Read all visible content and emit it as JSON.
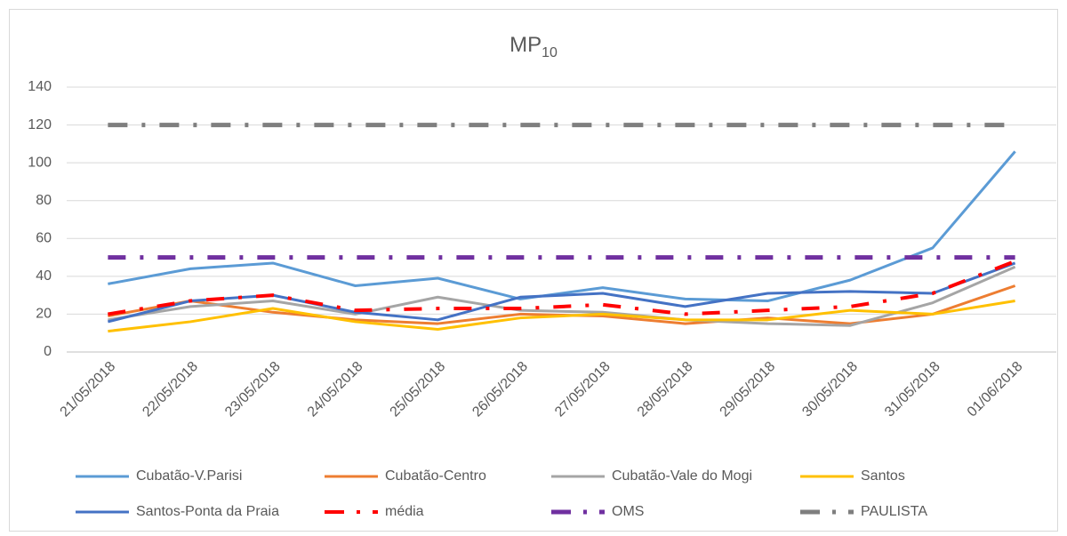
{
  "chart_data": {
    "type": "line",
    "title": "MP",
    "title_subscript": "10",
    "categories": [
      "21/05/2018",
      "22/05/2018",
      "23/05/2018",
      "24/05/2018",
      "25/05/2018",
      "26/05/2018",
      "27/05/2018",
      "28/05/2018",
      "29/05/2018",
      "30/05/2018",
      "31/05/2018",
      "01/06/2018"
    ],
    "series": [
      {
        "name": "Cubatão-V.Parisi",
        "color": "#5b9bd5",
        "line_style": "solid",
        "values": [
          36,
          44,
          47,
          35,
          39,
          28,
          34,
          28,
          27,
          38,
          55,
          106
        ]
      },
      {
        "name": "Cubatão-Centro",
        "color": "#ed7d31",
        "line_style": "solid",
        "values": [
          19,
          27,
          21,
          17,
          15,
          20,
          19,
          15,
          18,
          15,
          20,
          35
        ]
      },
      {
        "name": "Cubatão-Vale do Mogi",
        "color": "#a5a5a5",
        "line_style": "solid",
        "values": [
          17,
          24,
          27,
          20,
          29,
          22,
          21,
          17,
          15,
          14,
          26,
          45
        ]
      },
      {
        "name": "Santos",
        "color": "#ffc000",
        "line_style": "solid",
        "values": [
          11,
          16,
          23,
          16,
          12,
          18,
          20,
          17,
          17,
          22,
          20,
          27
        ]
      },
      {
        "name": "Santos-Ponta da Praia",
        "color": "#4472c4",
        "line_style": "solid",
        "values": [
          16,
          27,
          30,
          21,
          17,
          29,
          31,
          24,
          31,
          32,
          31,
          47
        ]
      },
      {
        "name": "média",
        "color": "#ff0000",
        "line_style": "dash-dot",
        "values": [
          20,
          27,
          30,
          22,
          23,
          23,
          25,
          20,
          22,
          24,
          31,
          48
        ]
      },
      {
        "name": "OMS",
        "color": "#7030a0",
        "line_style": "dash-dot",
        "values": [
          50,
          50,
          50,
          50,
          50,
          50,
          50,
          50,
          50,
          50,
          50,
          50
        ]
      },
      {
        "name": "PAULISTA",
        "color": "#7f7f7f",
        "line_style": "dash-dot",
        "values": [
          120,
          120,
          120,
          120,
          120,
          120,
          120,
          120,
          120,
          120,
          120,
          120
        ]
      }
    ],
    "ylim": [
      0,
      140
    ],
    "yticks": [
      0,
      20,
      40,
      60,
      80,
      100,
      120,
      140
    ],
    "grid": true,
    "legend": "bottom"
  }
}
